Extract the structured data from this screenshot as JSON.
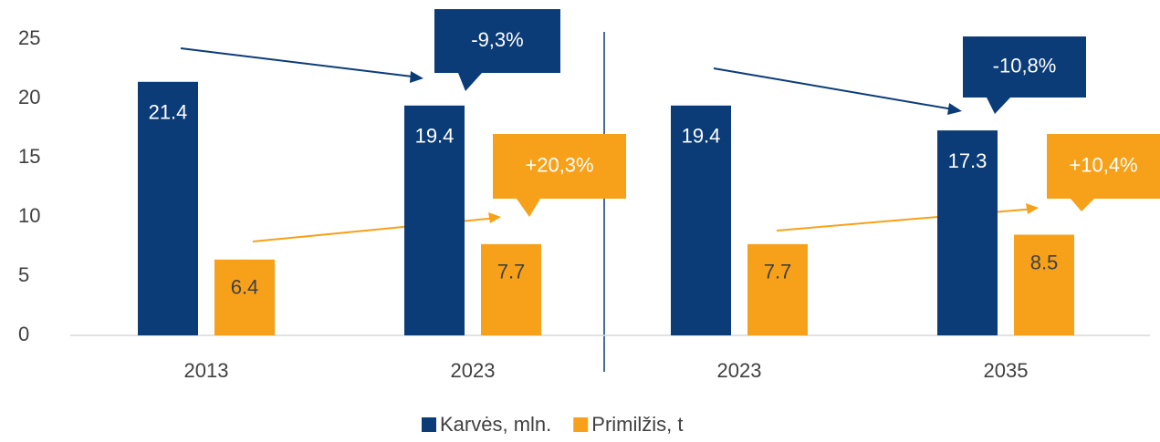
{
  "chart_data": {
    "type": "bar",
    "categories": [
      "2013",
      "2023",
      "2023",
      "2035"
    ],
    "series": [
      {
        "name": "Karvės, mln.",
        "color": "#0b3c78",
        "values": [
          21.4,
          19.4,
          19.4,
          17.3
        ]
      },
      {
        "name": "Primilžis, t",
        "color": "#f7a11a",
        "values": [
          6.4,
          7.7,
          7.7,
          8.5
        ]
      }
    ],
    "ylim": [
      0,
      25
    ],
    "yticks": [
      0,
      5,
      10,
      15,
      20,
      25
    ],
    "annotations": [
      "-9,3%",
      "+20,3%",
      "-10,8%",
      "+10,4%"
    ],
    "legend": "bottom"
  }
}
